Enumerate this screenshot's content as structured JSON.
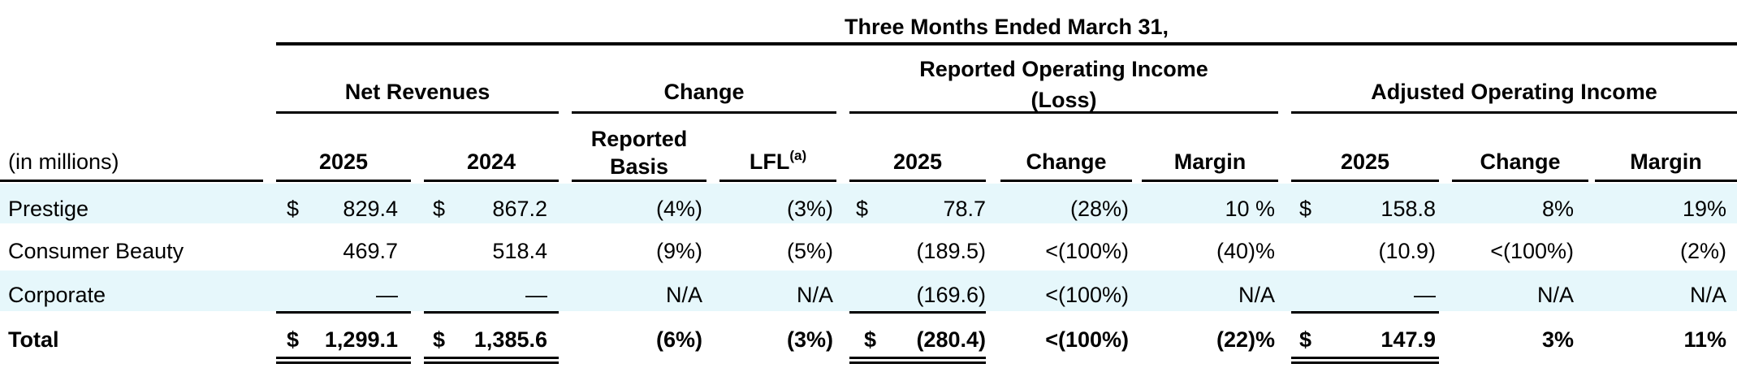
{
  "period_title": "Three Months Ended March 31,",
  "groups": {
    "net_revenues": "Net Revenues",
    "change": "Change",
    "reported_oi_line1": "Reported Operating Income",
    "reported_oi_line2": "(Loss)",
    "adjusted_oi": "Adjusted Operating Income"
  },
  "columns": {
    "units": "(in millions)",
    "nr_2025": "2025",
    "nr_2024": "2024",
    "reported_basis_line1": "Reported",
    "reported_basis_line2": "Basis",
    "lfl": "LFL",
    "lfl_note": "(a)",
    "roi_2025": "2025",
    "roi_change": "Change",
    "roi_margin": "Margin",
    "aoi_2025": "2025",
    "aoi_change": "Change",
    "aoi_margin": "Margin"
  },
  "rows": [
    {
      "label": "Prestige",
      "nr_2025_sym": "$",
      "nr_2025": "829.4",
      "nr_2024_sym": "$",
      "nr_2024": "867.2",
      "reported_basis": "(4%)",
      "lfl": "(3%)",
      "roi_2025_sym": "$",
      "roi_2025": "78.7",
      "roi_change": "(28%)",
      "roi_margin": "10 %",
      "aoi_2025_sym": "$",
      "aoi_2025": "158.8",
      "aoi_change": "8%",
      "aoi_margin": "19%"
    },
    {
      "label": "Consumer Beauty",
      "nr_2025_sym": "",
      "nr_2025": "469.7",
      "nr_2024_sym": "",
      "nr_2024": "518.4",
      "reported_basis": "(9%)",
      "lfl": "(5%)",
      "roi_2025_sym": "",
      "roi_2025": "(189.5)",
      "roi_change": "<(100%)",
      "roi_margin": "(40)%",
      "aoi_2025_sym": "",
      "aoi_2025": "(10.9)",
      "aoi_change": "<(100%)",
      "aoi_margin": "(2%)"
    },
    {
      "label": "Corporate",
      "nr_2025_sym": "",
      "nr_2025": "—",
      "nr_2024_sym": "",
      "nr_2024": "—",
      "reported_basis": "N/A",
      "lfl": "N/A",
      "roi_2025_sym": "",
      "roi_2025": "(169.6)",
      "roi_change": "<(100%)",
      "roi_margin": "N/A",
      "aoi_2025_sym": "",
      "aoi_2025": "—",
      "aoi_change": "N/A",
      "aoi_margin": "N/A"
    },
    {
      "label": "Total",
      "nr_2025_sym": "$",
      "nr_2025": "1,299.1",
      "nr_2024_sym": "$",
      "nr_2024": "1,385.6",
      "reported_basis": "(6%)",
      "lfl": "(3%)",
      "roi_2025_sym": "$",
      "roi_2025": "(280.4)",
      "roi_change": "<(100%)",
      "roi_margin": "(22)%",
      "aoi_2025_sym": "$",
      "aoi_2025": "147.9",
      "aoi_change": "3%",
      "aoi_margin": "11%"
    }
  ],
  "colors": {
    "band": "#e6f7fb",
    "rule": "#000000"
  }
}
